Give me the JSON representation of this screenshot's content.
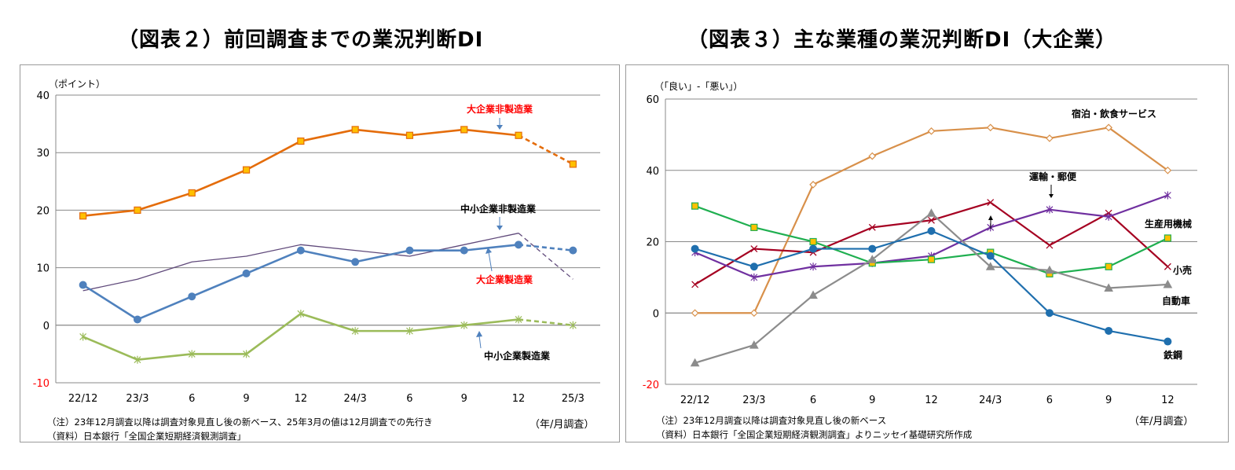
{
  "figure1": {
    "title": "（図表２）前回調査までの業況判断DI",
    "note": "（注）23年12月調査以降は調査対象見直し後の新ベース、25年3月の値は12月調査での先行き",
    "source": "（資料）日本銀行「全国企業短期経済観測調査」",
    "unit": "（年/月調査）"
  },
  "figure2": {
    "title": "（図表３）主な業種の業況判断DI（大企業）",
    "note": "（注）23年12月調査以降は調査対象見直し後の新ベース",
    "source": "（資料）日本銀行「全国企業短期経済観測調査」よりニッセイ基礎研究所作成",
    "unit": "（年/月調査）"
  },
  "colors": {
    "orange": "#E46C0A",
    "blue": "#4F81BD",
    "purple": "#604A7B",
    "green": "#9BBB59",
    "red": "#FF0000",
    "tan": "#D8904A",
    "steelblue": "#1F6FAE",
    "darkred": "#A50021",
    "violet": "#7030A0",
    "grey": "#8C8C8C",
    "brightgreen": "#1FAF50"
  },
  "chart_data": [
    {
      "type": "line",
      "ylabel": "（ポイント）",
      "categories": [
        "22/12",
        "23/3",
        "6",
        "9",
        "12",
        "24/3",
        "6",
        "9",
        "12",
        "25/3"
      ],
      "ylim": [
        -10,
        40
      ],
      "yticks": [
        -10,
        0,
        10,
        20,
        30,
        40
      ],
      "grid": true,
      "series": [
        {
          "name": "大企業非製造業",
          "values": [
            19,
            20,
            23,
            27,
            32,
            34,
            33,
            34,
            33,
            28
          ],
          "forecast_last": true,
          "color": "#E46C0A",
          "marker": "square"
        },
        {
          "name": "中小企業非製造業",
          "values": [
            6,
            8,
            11,
            12,
            14,
            13,
            12,
            14,
            16,
            8
          ],
          "forecast_last": true,
          "color": "#604A7B",
          "marker": "none"
        },
        {
          "name": "大企業製造業",
          "values": [
            7,
            1,
            5,
            9,
            13,
            11,
            13,
            13,
            14,
            13
          ],
          "forecast_last": true,
          "color": "#4F81BD",
          "marker": "circle"
        },
        {
          "name": "中小企業製造業",
          "values": [
            -2,
            -6,
            -5,
            -5,
            2,
            -1,
            -1,
            0,
            1,
            0
          ],
          "forecast_last": true,
          "color": "#9BBB59",
          "marker": "star"
        }
      ]
    },
    {
      "type": "line",
      "ylabel": "（「良い」-「悪い」）",
      "categories": [
        "22/12",
        "23/3",
        "6",
        "9",
        "12",
        "24/3",
        "6",
        "9",
        "12"
      ],
      "ylim": [
        -20,
        60
      ],
      "yticks": [
        -20,
        0,
        20,
        40,
        60
      ],
      "grid": true,
      "series": [
        {
          "name": "宿泊・飲食サービス",
          "values": [
            0,
            0,
            36,
            44,
            51,
            52,
            49,
            52,
            40
          ],
          "color": "#D8904A",
          "marker": "diamond"
        },
        {
          "name": "運輸・郵便",
          "values": [
            8,
            18,
            17,
            24,
            26,
            31,
            19,
            28,
            13
          ],
          "color": "#A50021",
          "marker": "cross"
        },
        {
          "name": "生産用機械",
          "values": [
            17,
            10,
            13,
            14,
            16,
            24,
            29,
            27,
            33
          ],
          "color": "#7030A0",
          "marker": "star"
        },
        {
          "name": "小売",
          "values": [
            30,
            24,
            20,
            14,
            15,
            17,
            11,
            13,
            21
          ],
          "color": "#1FAF50",
          "marker": "square"
        },
        {
          "name": "自動車",
          "values": [
            -14,
            -9,
            5,
            15,
            28,
            13,
            12,
            7,
            8
          ],
          "color": "#8C8C8C",
          "marker": "triangle"
        },
        {
          "name": "鉄鋼",
          "values": [
            18,
            13,
            18,
            18,
            23,
            16,
            0,
            -5,
            -8
          ],
          "color": "#1F6FAE",
          "marker": "circle"
        }
      ]
    }
  ]
}
